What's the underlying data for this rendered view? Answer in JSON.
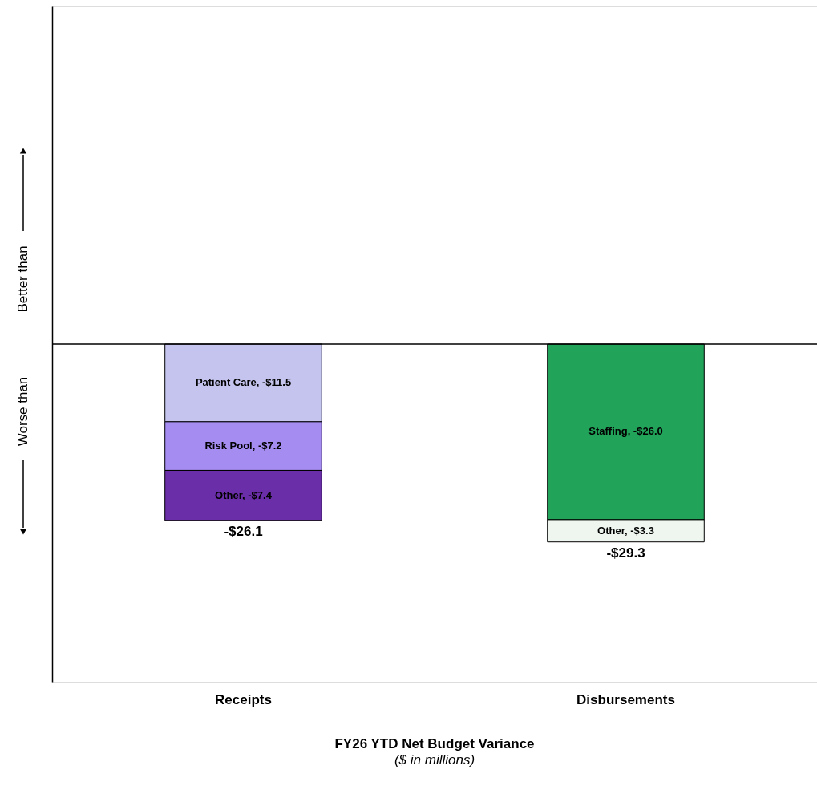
{
  "chart_data": {
    "type": "bar",
    "stacked": true,
    "title": "FY26 YTD Net Budget Variance",
    "subtitle": "($ in millions)",
    "categories": [
      "Receipts",
      "Disbursements"
    ],
    "series": [
      {
        "color": "#c4c4ee",
        "values": [
          -11.5,
          null
        ],
        "value_labels": [
          "Patient Care, -$11.5",
          null
        ]
      },
      {
        "color": "#a58cf0",
        "values": [
          -7.2,
          null
        ],
        "value_labels": [
          "Risk Pool, -$7.2",
          null
        ]
      },
      {
        "color": "#6a2ea8",
        "values": [
          -7.4,
          null
        ],
        "value_labels": [
          "Other, -$7.4",
          null
        ]
      },
      {
        "color": "#22a35a",
        "values": [
          null,
          -26.0
        ],
        "value_labels": [
          null,
          "Staffing, -$26.0"
        ]
      },
      {
        "color": "#eef6ef",
        "values": [
          null,
          -3.3
        ],
        "value_labels": [
          null,
          "Other, -$3.3"
        ]
      }
    ],
    "totals": [
      "-$26.1",
      "-$29.3"
    ],
    "ylim": [
      -50,
      50
    ],
    "ref_lines": [
      {
        "axis": "y",
        "value": 0
      }
    ],
    "annotations": [
      "Better than",
      "Worse than"
    ],
    "tick_labels": "x"
  }
}
